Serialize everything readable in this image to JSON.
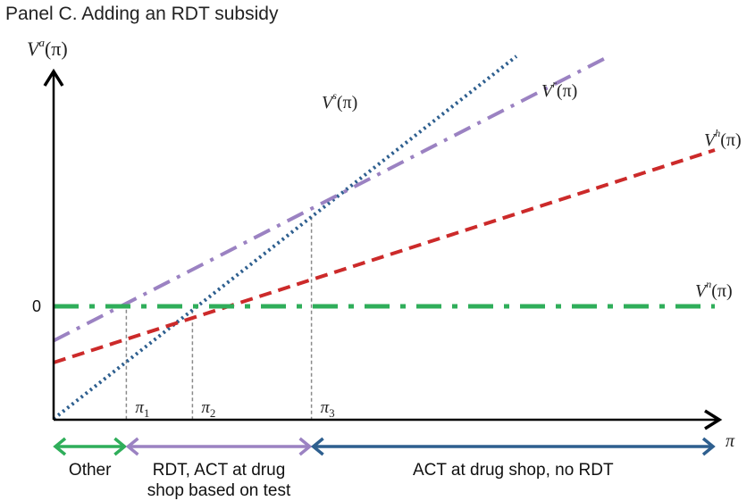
{
  "panel_title": "Panel C. Adding an RDT subsidy",
  "colors": {
    "axis": "#000000",
    "V_s": "#2e5f8f",
    "V_r": "#9b82c2",
    "V_h": "#cc2a2a",
    "V_n": "#2fae5a",
    "guide": "#8a8a8a",
    "arrow_other": "#2fae5a",
    "arrow_rdt": "#9b82c2",
    "arrow_act": "#2e5f8f"
  },
  "chart_data": {
    "type": "line",
    "title": "Panel C. Adding an RDT subsidy",
    "y_axis": {
      "var": "V",
      "sup": "a",
      "arg": "(π)",
      "zero_label": "0"
    },
    "x_axis": {
      "label": "π"
    },
    "xlim": [
      0,
      1
    ],
    "ylim": [
      -1.8,
      3.9
    ],
    "grid": false,
    "series": [
      {
        "id": "V_s",
        "var": "V",
        "sup": "s",
        "arg": "(π)",
        "style": "dotted",
        "color": "#2e5f8f",
        "x": [
          0,
          0.7
        ],
        "y": [
          -1.8,
          4.0
        ]
      },
      {
        "id": "V_r",
        "var": "V",
        "sup": "r",
        "arg": "(π)",
        "style": "dash-dot",
        "color": "#9b82c2",
        "x": [
          0,
          0.84
        ],
        "y": [
          -0.55,
          4.0
        ]
      },
      {
        "id": "V_h",
        "var": "V",
        "sup": "h",
        "arg": "(π)",
        "style": "dashed",
        "color": "#cc2a2a",
        "x": [
          0,
          1.0
        ],
        "y": [
          -0.9,
          2.5
        ]
      },
      {
        "id": "V_n",
        "var": "V",
        "sup": "n",
        "arg": "(π)",
        "style": "dash-dot",
        "color": "#2fae5a",
        "x": [
          0,
          1.0
        ],
        "y": [
          0,
          0
        ]
      }
    ],
    "thresholds": [
      {
        "sym": "π",
        "sub": "1",
        "x": 0.11
      },
      {
        "sym": "π",
        "sub": "2",
        "x": 0.21
      },
      {
        "sym": "π",
        "sub": "3",
        "x": 0.39
      }
    ],
    "regions": [
      {
        "label_lines": [
          "Other"
        ],
        "from": 0,
        "to": 0.11,
        "color": "#2fae5a"
      },
      {
        "label_lines": [
          "RDT, ACT at drug",
          "shop based on test"
        ],
        "from": 0.11,
        "to": 0.39,
        "color": "#9b82c2"
      },
      {
        "label_lines": [
          "ACT at drug shop, no RDT"
        ],
        "from": 0.39,
        "to": 1.0,
        "color": "#2e5f8f"
      }
    ]
  }
}
